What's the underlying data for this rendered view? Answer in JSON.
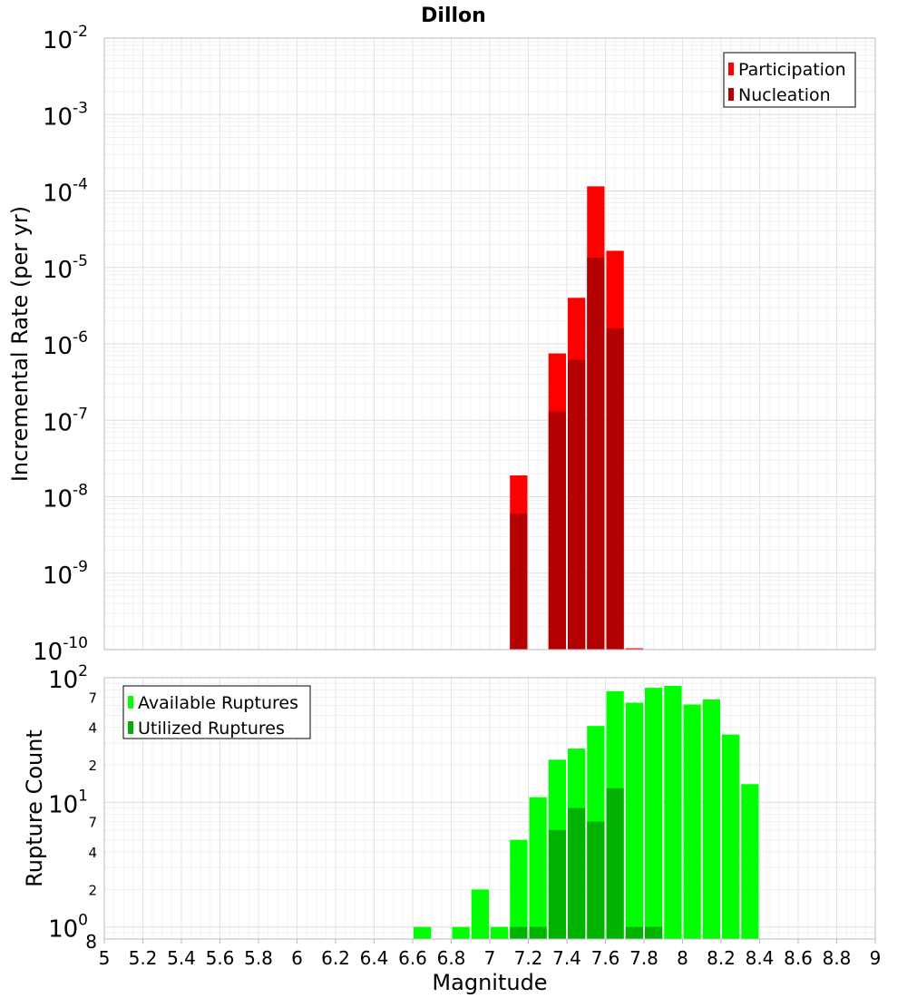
{
  "chart_data": [
    {
      "type": "bar",
      "title": "Dillon",
      "xlabel": "",
      "ylabel": "Incremental Rate (per yr)",
      "yscale": "log",
      "ylim": [
        1e-10,
        0.01
      ],
      "xlim": [
        5,
        9
      ],
      "y_ticks": [
        {
          "base": "10",
          "exp": "-2"
        },
        {
          "base": "10",
          "exp": "-3"
        },
        {
          "base": "10",
          "exp": "-4"
        },
        {
          "base": "10",
          "exp": "-5"
        },
        {
          "base": "10",
          "exp": "-6"
        },
        {
          "base": "10",
          "exp": "-7"
        },
        {
          "base": "10",
          "exp": "-8"
        },
        {
          "base": "10",
          "exp": "-9"
        },
        {
          "base": "10",
          "exp": "-10"
        }
      ],
      "legend": [
        {
          "label": "Participation",
          "color": "#ff0000"
        },
        {
          "label": "Nucleation",
          "color": "#b30000"
        }
      ],
      "series": [
        {
          "name": "Participation",
          "color": "#ff0000",
          "points": [
            {
              "x": 7.15,
              "y": 1.9e-08
            },
            {
              "x": 7.35,
              "y": 7.5e-07
            },
            {
              "x": 7.45,
              "y": 4e-06
            },
            {
              "x": 7.55,
              "y": 0.000115
            },
            {
              "x": 7.65,
              "y": 1.65e-05
            },
            {
              "x": 7.75,
              "y": 1e-10
            }
          ]
        },
        {
          "name": "Nucleation",
          "color": "#b30000",
          "points": [
            {
              "x": 7.15,
              "y": 6e-09
            },
            {
              "x": 7.35,
              "y": 1.3e-07
            },
            {
              "x": 7.45,
              "y": 6.2e-07
            },
            {
              "x": 7.55,
              "y": 1.35e-05
            },
            {
              "x": 7.65,
              "y": 1.6e-06
            }
          ]
        }
      ]
    },
    {
      "type": "bar",
      "title": "",
      "xlabel": "Magnitude",
      "ylabel": "Rupture Count",
      "yscale": "log",
      "ylim": [
        0.8,
        100
      ],
      "xlim": [
        5,
        9
      ],
      "x_ticks": [
        "5",
        "5.2",
        "5.4",
        "5.6",
        "5.8",
        "6",
        "6.2",
        "6.4",
        "6.6",
        "6.8",
        "7",
        "7.2",
        "7.4",
        "7.6",
        "7.8",
        "8",
        "8.2",
        "8.4",
        "8.6",
        "8.8",
        "9"
      ],
      "y_ticks": [
        {
          "base": "10",
          "exp": "2"
        },
        {
          "base": "10",
          "exp": "1"
        },
        {
          "base": "10",
          "exp": "0"
        }
      ],
      "y_minor_labels": [
        "7",
        "4",
        "2",
        "7",
        "4",
        "2",
        "8"
      ],
      "legend": [
        {
          "label": "Available Ruptures",
          "color": "#00ff00"
        },
        {
          "label": "Utilized Ruptures",
          "color": "#00b300"
        }
      ],
      "series": [
        {
          "name": "Available Ruptures",
          "color": "#00ff00",
          "points": [
            {
              "x": 6.65,
              "y": 1
            },
            {
              "x": 6.85,
              "y": 1
            },
            {
              "x": 6.95,
              "y": 2
            },
            {
              "x": 7.05,
              "y": 1
            },
            {
              "x": 7.15,
              "y": 5
            },
            {
              "x": 7.25,
              "y": 11
            },
            {
              "x": 7.35,
              "y": 22
            },
            {
              "x": 7.45,
              "y": 27
            },
            {
              "x": 7.55,
              "y": 41
            },
            {
              "x": 7.65,
              "y": 78
            },
            {
              "x": 7.75,
              "y": 63
            },
            {
              "x": 7.85,
              "y": 83
            },
            {
              "x": 7.95,
              "y": 86
            },
            {
              "x": 8.05,
              "y": 61
            },
            {
              "x": 8.15,
              "y": 67
            },
            {
              "x": 8.25,
              "y": 35
            },
            {
              "x": 8.35,
              "y": 14
            }
          ]
        },
        {
          "name": "Utilized Ruptures",
          "color": "#00b300",
          "points": [
            {
              "x": 7.15,
              "y": 1
            },
            {
              "x": 7.25,
              "y": 1
            },
            {
              "x": 7.35,
              "y": 6
            },
            {
              "x": 7.45,
              "y": 9
            },
            {
              "x": 7.55,
              "y": 7
            },
            {
              "x": 7.65,
              "y": 13
            },
            {
              "x": 7.75,
              "y": 1
            },
            {
              "x": 7.85,
              "y": 1
            }
          ]
        }
      ]
    }
  ]
}
